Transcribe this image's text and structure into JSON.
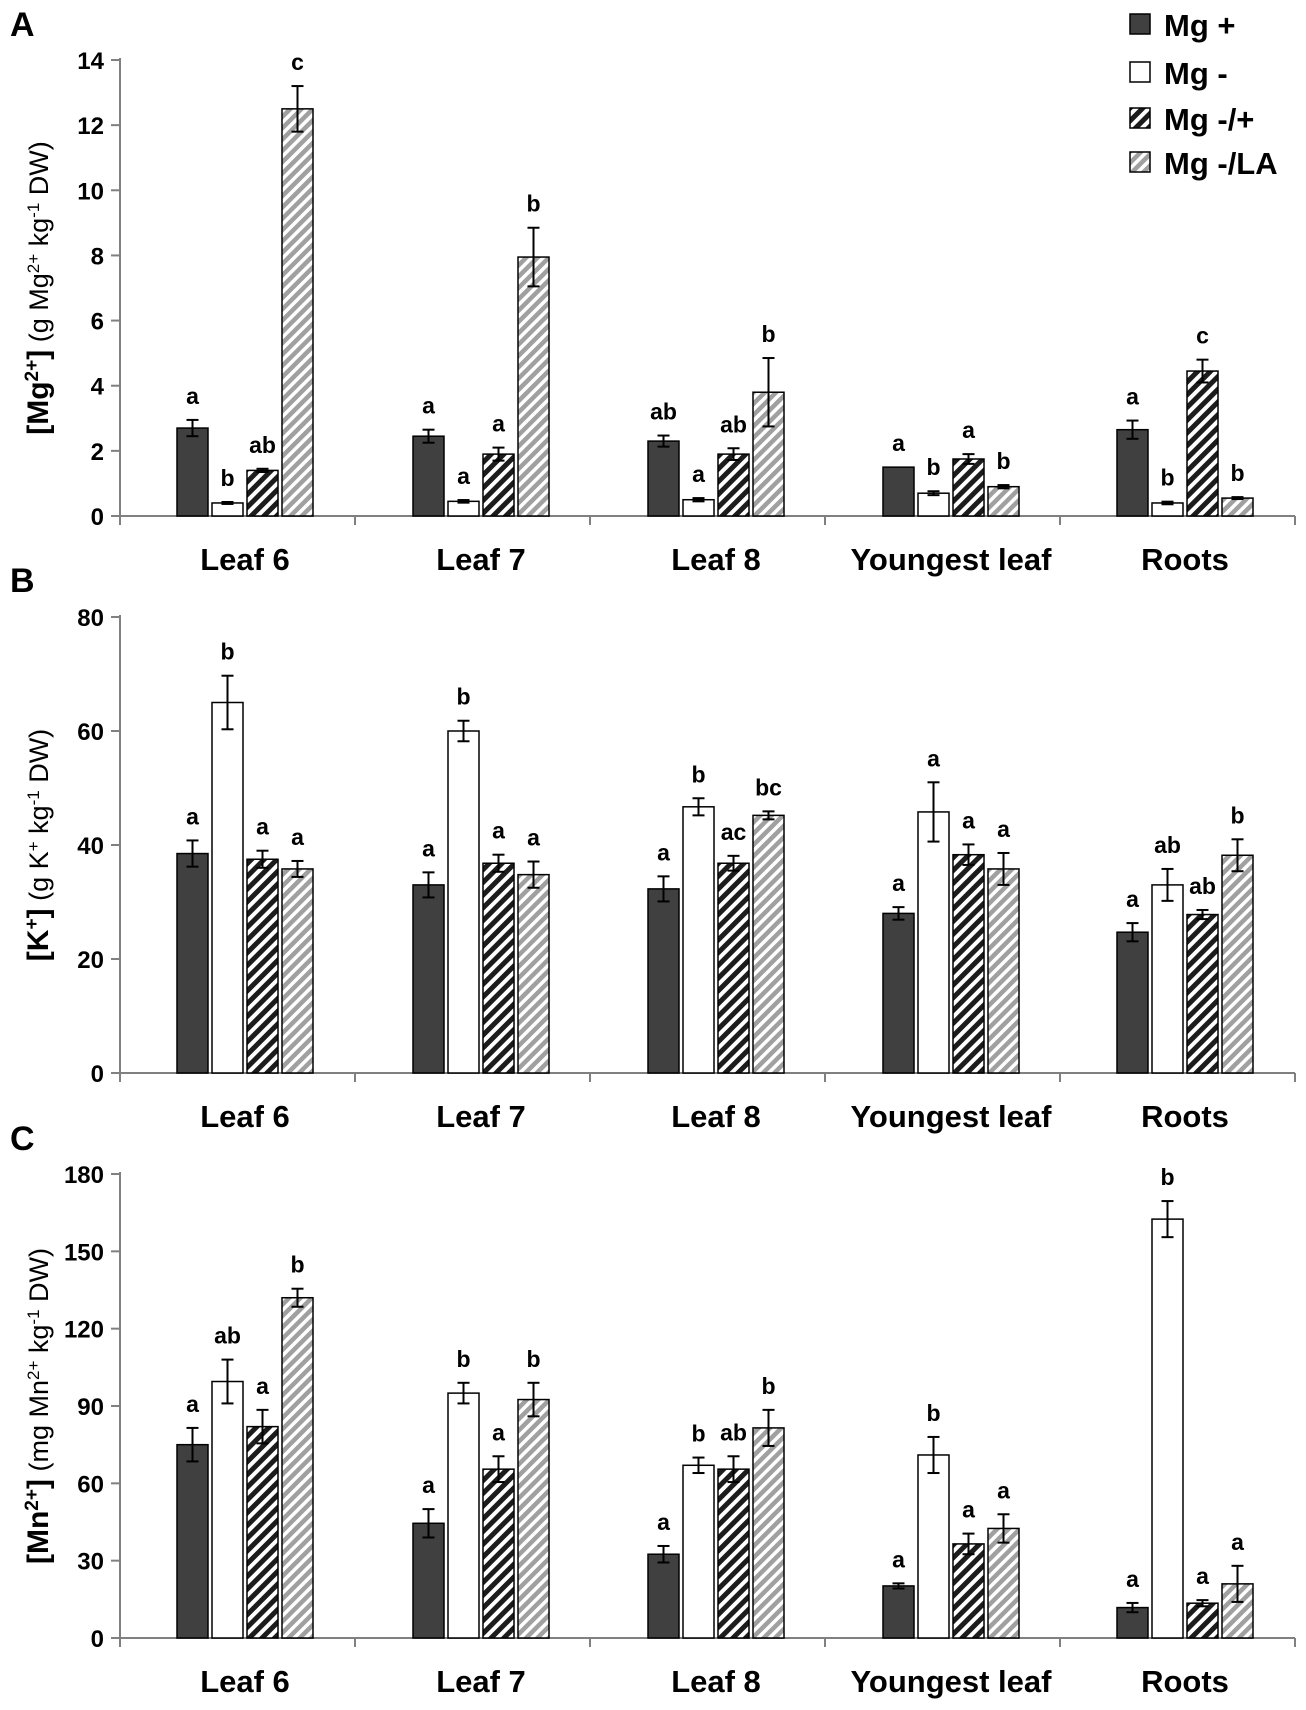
{
  "colors": {
    "mg_plus": "#404040",
    "mg_minus": "#ffffff",
    "mg_back": "#1c1c1c",
    "mg_la": "#a0a0a0",
    "axis": "#808080"
  },
  "legend": [
    {
      "label": "Mg +",
      "pattern": "solid"
    },
    {
      "label": "Mg -",
      "pattern": "white"
    },
    {
      "label": "Mg -/+",
      "pattern": "hatch-dark"
    },
    {
      "label": "Mg -/LA",
      "pattern": "hatch-light"
    }
  ],
  "chart_data": [
    {
      "type": "bar",
      "panel": "A",
      "ylabel_main": "[Mg",
      "ylabel_main_sup": "2+",
      "ylabel_main_end": "]",
      "ylabel_paren": " (g Mg",
      "ylabel_paren_sup": "2+",
      "ylabel_paren_mid": " kg",
      "ylabel_paren_sup2": "-1",
      "ylabel_paren_end": " DW)",
      "ylim": [
        0,
        14
      ],
      "yticks": [
        0,
        2,
        4,
        6,
        8,
        10,
        12,
        14
      ],
      "categories": [
        "Leaf 6",
        "Leaf 7",
        "Leaf 8",
        "Youngest leaf",
        "Roots"
      ],
      "series": [
        {
          "name": "Mg +",
          "values": [
            2.7,
            2.45,
            2.3,
            1.5,
            2.65
          ],
          "errors": [
            0.25,
            0.2,
            0.17,
            0.0,
            0.28
          ],
          "labels": [
            "a",
            "a",
            "ab",
            "a",
            "a"
          ]
        },
        {
          "name": "Mg -",
          "values": [
            0.4,
            0.45,
            0.5,
            0.7,
            0.4
          ],
          "errors": [
            0.03,
            0.04,
            0.05,
            0.06,
            0.04
          ],
          "labels": [
            "b",
            "a",
            "a",
            "b",
            "b"
          ]
        },
        {
          "name": "Mg -/+",
          "values": [
            1.4,
            1.9,
            1.9,
            1.75,
            4.45
          ],
          "errors": [
            0.05,
            0.2,
            0.18,
            0.15,
            0.35
          ],
          "labels": [
            "ab",
            "a",
            "ab",
            "a",
            "c"
          ]
        },
        {
          "name": "Mg -/LA",
          "values": [
            12.5,
            7.95,
            3.8,
            0.9,
            0.55
          ],
          "errors": [
            0.7,
            0.9,
            1.05,
            0.05,
            0.03
          ],
          "labels": [
            "c",
            "b",
            "b",
            "b",
            "b"
          ]
        }
      ]
    },
    {
      "type": "bar",
      "panel": "B",
      "ylabel_main": "[K",
      "ylabel_main_sup": "+",
      "ylabel_main_end": "]",
      "ylabel_paren": " (g K",
      "ylabel_paren_sup": "+",
      "ylabel_paren_mid": " kg",
      "ylabel_paren_sup2": "-1",
      "ylabel_paren_end": " DW)",
      "ylim": [
        0,
        80
      ],
      "yticks": [
        0,
        20,
        40,
        60,
        80
      ],
      "categories": [
        "Leaf 6",
        "Leaf 7",
        "Leaf 8",
        "Youngest leaf",
        "Roots"
      ],
      "series": [
        {
          "name": "Mg +",
          "values": [
            38.5,
            33,
            32.3,
            28,
            24.7
          ],
          "errors": [
            2.3,
            2.2,
            2.2,
            1.1,
            1.6
          ],
          "labels": [
            "a",
            "a",
            "a",
            "a",
            "a"
          ]
        },
        {
          "name": "Mg -",
          "values": [
            65,
            60,
            46.7,
            45.8,
            33
          ],
          "errors": [
            4.7,
            1.8,
            1.5,
            5.2,
            2.8
          ],
          "labels": [
            "b",
            "b",
            "b",
            "a",
            "ab"
          ]
        },
        {
          "name": "Mg -/+",
          "values": [
            37.5,
            36.8,
            36.8,
            38.3,
            27.8
          ],
          "errors": [
            1.5,
            1.5,
            1.3,
            1.8,
            0.8
          ],
          "labels": [
            "a",
            "a",
            "ac",
            "a",
            "ab"
          ]
        },
        {
          "name": "Mg -/LA",
          "values": [
            35.8,
            34.8,
            45.2,
            35.8,
            38.2
          ],
          "errors": [
            1.4,
            2.3,
            0.7,
            2.8,
            2.8
          ],
          "labels": [
            "a",
            "a",
            "bc",
            "a",
            "b"
          ]
        }
      ]
    },
    {
      "type": "bar",
      "panel": "C",
      "ylabel_main": "[Mn",
      "ylabel_main_sup": "2+",
      "ylabel_main_end": "]",
      "ylabel_paren": " (mg Mn",
      "ylabel_paren_sup": "2+",
      "ylabel_paren_mid": " kg",
      "ylabel_paren_sup2": "-1",
      "ylabel_paren_end": " DW)",
      "ylim": [
        0,
        180
      ],
      "yticks": [
        0,
        30,
        60,
        90,
        120,
        150,
        180
      ],
      "categories": [
        "Leaf 6",
        "Leaf 7",
        "Leaf 8",
        "Youngest leaf",
        "Roots"
      ],
      "series": [
        {
          "name": "Mg +",
          "values": [
            75,
            44.5,
            32.5,
            20.2,
            11.8
          ],
          "errors": [
            6.5,
            5.5,
            3.2,
            1.0,
            1.8
          ],
          "labels": [
            "a",
            "a",
            "a",
            "a",
            "a"
          ]
        },
        {
          "name": "Mg -",
          "values": [
            99.5,
            95,
            67,
            71,
            162.5
          ],
          "errors": [
            8.5,
            4.0,
            3.0,
            7.0,
            7.0
          ],
          "labels": [
            "ab",
            "b",
            "b",
            "b",
            "b"
          ]
        },
        {
          "name": "Mg -/+",
          "values": [
            82,
            65.5,
            65.5,
            36.5,
            13.5
          ],
          "errors": [
            6.5,
            5.0,
            5.0,
            4.0,
            1.2
          ],
          "labels": [
            "a",
            "a",
            "ab",
            "a",
            "a"
          ]
        },
        {
          "name": "Mg -/LA",
          "values": [
            132,
            92.5,
            81.5,
            42.5,
            21
          ],
          "errors": [
            3.5,
            6.5,
            7.0,
            5.5,
            7.0
          ],
          "labels": [
            "b",
            "b",
            "b",
            "a",
            "a"
          ]
        }
      ]
    }
  ]
}
